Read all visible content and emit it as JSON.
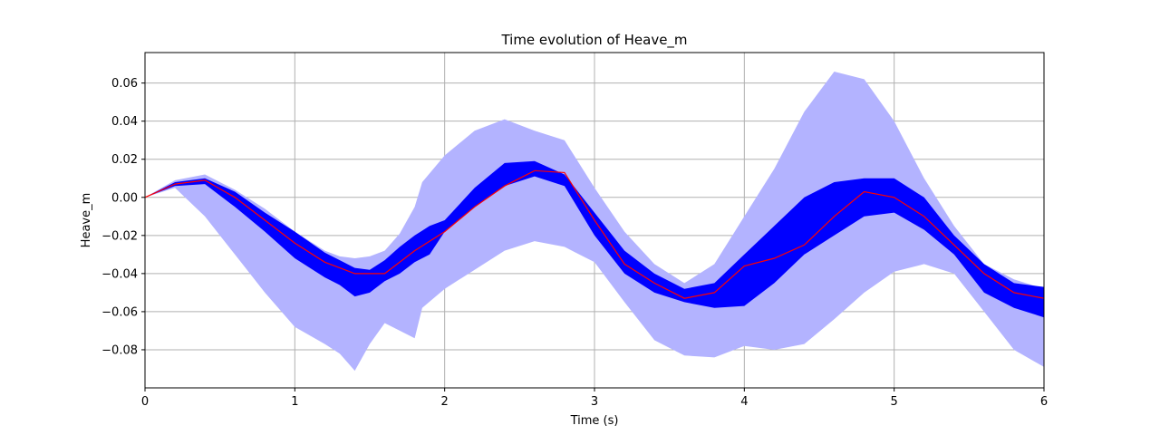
{
  "chart_data": {
    "type": "area",
    "title": "Time evolution of Heave_m",
    "xlabel": "Time (s)",
    "ylabel": "Heave_m",
    "xlim": [
      0,
      6
    ],
    "ylim": [
      -0.1,
      0.076
    ],
    "xticks": [
      0,
      1,
      2,
      3,
      4,
      5,
      6
    ],
    "xtick_labels": [
      "0",
      "1",
      "2",
      "3",
      "4",
      "5",
      "6"
    ],
    "yticks": [
      -0.08,
      -0.06,
      -0.04,
      -0.02,
      0.0,
      0.02,
      0.04,
      0.06
    ],
    "ytick_labels": [
      "−0.08",
      "−0.06",
      "−0.04",
      "−0.02",
      "0.00",
      "0.02",
      "0.04",
      "0.06"
    ],
    "grid": true,
    "colors": {
      "outer_band": "#b3b3ff",
      "inner_band": "#0000ff",
      "mean_line": "#ff0000",
      "grid": "#b0b0b0"
    },
    "outer_band": {
      "x": [
        0,
        0.2,
        0.4,
        0.6,
        0.8,
        1.0,
        1.2,
        1.3,
        1.4,
        1.5,
        1.6,
        1.7,
        1.8,
        1.85,
        2.0,
        2.2,
        2.4,
        2.6,
        2.8,
        3.0,
        3.2,
        3.4,
        3.6,
        3.8,
        4.0,
        4.2,
        4.4,
        4.6,
        4.8,
        5.0,
        5.2,
        5.4,
        5.6,
        5.8,
        6.0
      ],
      "upper": [
        0,
        0.009,
        0.012,
        0.004,
        -0.006,
        -0.018,
        -0.028,
        -0.031,
        -0.032,
        -0.031,
        -0.028,
        -0.019,
        -0.005,
        0.008,
        0.022,
        0.035,
        0.041,
        0.035,
        0.03,
        0.005,
        -0.018,
        -0.035,
        -0.045,
        -0.035,
        -0.01,
        0.015,
        0.045,
        0.066,
        0.062,
        0.04,
        0.01,
        -0.015,
        -0.035,
        -0.043,
        -0.048
      ],
      "lower": [
        0,
        0.005,
        -0.01,
        -0.03,
        -0.05,
        -0.068,
        -0.077,
        -0.082,
        -0.091,
        -0.077,
        -0.066,
        -0.07,
        -0.074,
        -0.058,
        -0.048,
        -0.038,
        -0.028,
        -0.023,
        -0.026,
        -0.034,
        -0.055,
        -0.075,
        -0.083,
        -0.084,
        -0.078,
        -0.08,
        -0.077,
        -0.064,
        -0.05,
        -0.039,
        -0.035,
        -0.04,
        -0.06,
        -0.08,
        -0.089
      ]
    },
    "inner_band": {
      "x": [
        0,
        0.2,
        0.4,
        0.6,
        0.8,
        1.0,
        1.2,
        1.3,
        1.4,
        1.5,
        1.6,
        1.7,
        1.8,
        1.9,
        2.0,
        2.2,
        2.4,
        2.6,
        2.8,
        3.0,
        3.2,
        3.4,
        3.6,
        3.8,
        4.0,
        4.2,
        4.4,
        4.6,
        4.8,
        5.0,
        5.2,
        5.4,
        5.6,
        5.8,
        6.0
      ],
      "upper": [
        0,
        0.008,
        0.01,
        0.003,
        -0.008,
        -0.018,
        -0.029,
        -0.033,
        -0.037,
        -0.038,
        -0.033,
        -0.026,
        -0.02,
        -0.015,
        -0.012,
        0.005,
        0.018,
        0.019,
        0.012,
        -0.008,
        -0.028,
        -0.04,
        -0.048,
        -0.045,
        -0.03,
        -0.015,
        0.0,
        0.008,
        0.01,
        0.01,
        0.0,
        -0.02,
        -0.035,
        -0.045,
        -0.047
      ],
      "lower": [
        0,
        0.006,
        0.007,
        -0.005,
        -0.018,
        -0.032,
        -0.042,
        -0.046,
        -0.052,
        -0.05,
        -0.044,
        -0.04,
        -0.034,
        -0.03,
        -0.018,
        -0.005,
        0.006,
        0.011,
        0.006,
        -0.02,
        -0.04,
        -0.05,
        -0.055,
        -0.058,
        -0.057,
        -0.045,
        -0.03,
        -0.02,
        -0.01,
        -0.008,
        -0.017,
        -0.03,
        -0.05,
        -0.058,
        -0.063
      ]
    },
    "series": [
      {
        "x": [
          0,
          0.2,
          0.4,
          0.6,
          0.8,
          1.0,
          1.2,
          1.4,
          1.6,
          1.8,
          2.0,
          2.2,
          2.4,
          2.6,
          2.8,
          3.0,
          3.2,
          3.4,
          3.6,
          3.8,
          4.0,
          4.2,
          4.4,
          4.6,
          4.8,
          5.0,
          5.2,
          5.4,
          5.6,
          5.8,
          6.0
        ],
        "values": [
          0,
          0.007,
          0.009,
          0.0,
          -0.012,
          -0.024,
          -0.034,
          -0.04,
          -0.04,
          -0.028,
          -0.018,
          -0.005,
          0.006,
          0.014,
          0.013,
          -0.012,
          -0.035,
          -0.045,
          -0.053,
          -0.05,
          -0.036,
          -0.032,
          -0.025,
          -0.01,
          0.003,
          0.0,
          -0.01,
          -0.025,
          -0.04,
          -0.05,
          -0.053
        ]
      }
    ]
  }
}
